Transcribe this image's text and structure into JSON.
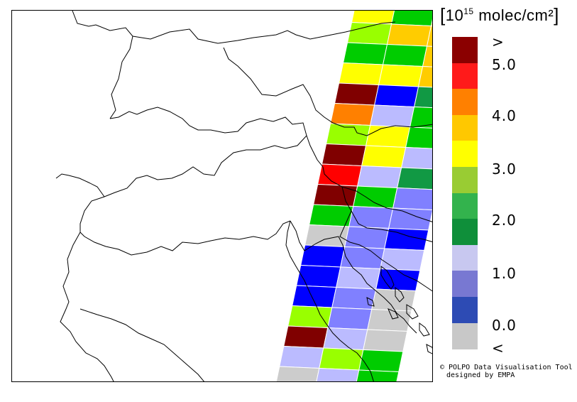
{
  "legend": {
    "unit_exponent": "15",
    "unit_base": "10",
    "unit_rest": "molec/cm²",
    "bracket_open": "[",
    "bracket_close": "]",
    "bins": [
      {
        "color": "#8b0000"
      },
      {
        "color": "#ff1a1a"
      },
      {
        "color": "#ff8000"
      },
      {
        "color": "#ffc800"
      },
      {
        "color": "#ffff00"
      },
      {
        "color": "#99cc33"
      },
      {
        "color": "#33b34d"
      },
      {
        "color": "#0f8f3a"
      },
      {
        "color": "#c8c8f0"
      },
      {
        "color": "#7878d2"
      },
      {
        "color": "#2d4bb4"
      },
      {
        "color": "#c8c8c8"
      }
    ],
    "ticks": [
      ">",
      "5.0",
      "4.0",
      "3.0",
      "2.0",
      "1.0",
      "0.0",
      "<"
    ]
  },
  "credits": {
    "line1": "© POLPO Data Visualisation Tool",
    "line2": "designed by EMPA"
  },
  "colors": {
    "dred": "#800000",
    "red": "#ff0000",
    "orange": "#ff8000",
    "gold": "#ffcc00",
    "yellow": "#ffff00",
    "lime": "#99ff00",
    "green": "#00cc00",
    "dgreen": "#119944",
    "lav": "#bbbbff",
    "peri": "#8080ff",
    "blue": "#0000ff",
    "grey": "#cccccc"
  },
  "swath_rows": [
    [
      "yellow",
      "green",
      "gold"
    ],
    [
      "lime",
      "gold",
      "gold"
    ],
    [
      "green",
      "green",
      "gold"
    ],
    [
      "yellow",
      "yellow",
      "gold"
    ],
    [
      "dred",
      "blue",
      "dgreen"
    ],
    [
      "orange",
      "lav",
      "green"
    ],
    [
      "lime",
      "yellow",
      "green"
    ],
    [
      "dred",
      "yellow",
      "lav"
    ],
    [
      "red",
      "lav",
      "dgreen"
    ],
    [
      "dred",
      "green",
      "peri"
    ],
    [
      "green",
      "peri",
      "peri"
    ],
    [
      "grey",
      "peri",
      "blue"
    ],
    [
      "blue",
      "peri",
      "lav"
    ],
    [
      "blue",
      "lav",
      "blue"
    ],
    [
      "blue",
      "peri",
      "grey"
    ],
    [
      "lime",
      "peri",
      "grey"
    ],
    [
      "dred",
      "lav",
      "grey"
    ],
    [
      "lav",
      "lime",
      "green"
    ],
    [
      "grey",
      "lav",
      "green"
    ],
    [
      "grey",
      "grey",
      "gold"
    ]
  ]
}
